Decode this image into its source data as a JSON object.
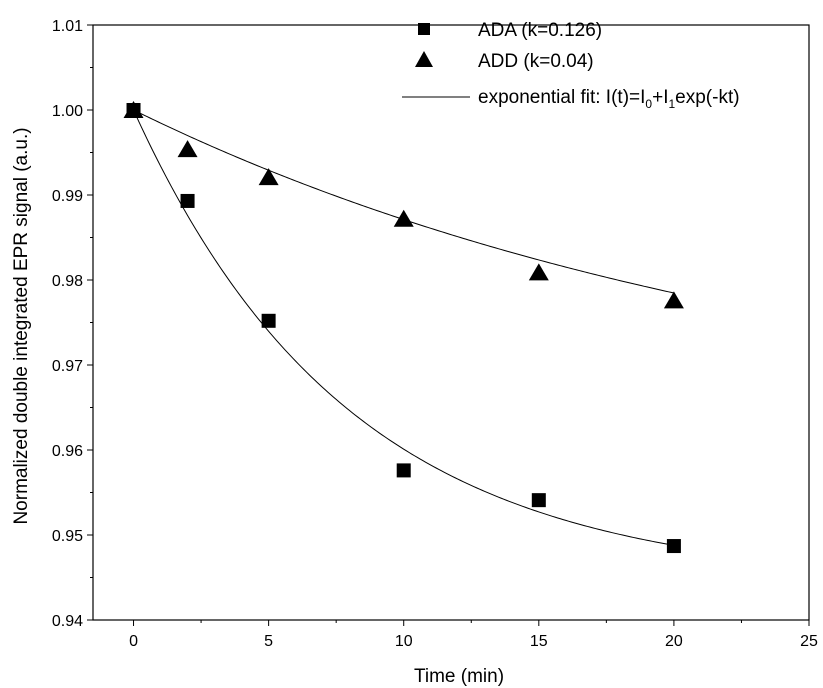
{
  "chart_data": {
    "type": "scatter",
    "xlabel": "Time (min)",
    "ylabel": "Normalized double integrated EPR signal (a.u.)",
    "xlim": [
      -1.5,
      25
    ],
    "ylim": [
      0.94,
      1.01
    ],
    "xticks": [
      "0",
      "5",
      "10",
      "15",
      "20",
      "25"
    ],
    "yticks": [
      "0.94",
      "0.95",
      "0.96",
      "0.97",
      "0.98",
      "0.99",
      "1.00",
      "1.01"
    ],
    "grid": false,
    "legend_position": "top-right",
    "series": [
      {
        "name": "ADA (k=0.126)",
        "marker": "square",
        "color": "#000000",
        "x": [
          0,
          2,
          5,
          10,
          15,
          20
        ],
        "y": [
          1.0,
          0.9893,
          0.9752,
          0.9576,
          0.9541,
          0.9487
        ],
        "fit": {
          "k": 0.126,
          "I0": 0.9443,
          "I1": 0.0557
        }
      },
      {
        "name": "ADD (k=0.04)",
        "marker": "triangle",
        "color": "#000000",
        "x": [
          0,
          2,
          5,
          10,
          15,
          20
        ],
        "y": [
          1.0,
          0.9954,
          0.9921,
          0.9872,
          0.9809,
          0.9776
        ],
        "fit": {
          "k": 0.04,
          "I0": 0.9609,
          "I1": 0.0391
        }
      }
    ],
    "fit_legend": {
      "prefix": "exponential fit: I(t)=I",
      "sub0": "0",
      "plus": "+I",
      "sub1": "1",
      "suffix": "exp(-kt)"
    }
  }
}
